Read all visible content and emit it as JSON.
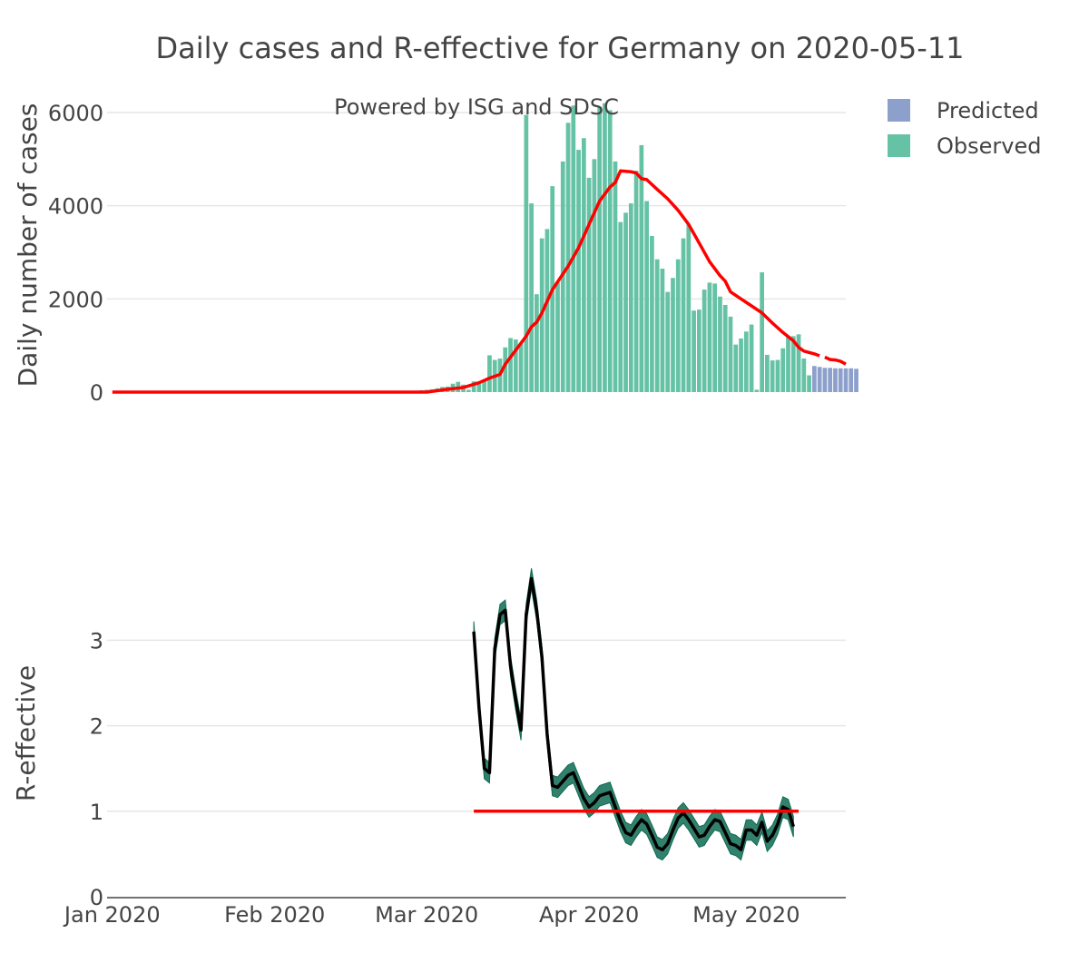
{
  "chart_data": [
    {
      "id": "cases",
      "type": "bar",
      "title": "Daily cases and R-effective for Germany on 2020-05-11",
      "annotation": "Powered by ISG and SDSC",
      "ylabel": "Daily number of cases",
      "xlim": [
        "2019-12-31",
        "2020-05-20"
      ],
      "ylim": [
        0,
        6000
      ],
      "yticks": [
        0,
        2000,
        4000,
        6000
      ],
      "legend": {
        "position": "top-right",
        "items": [
          {
            "name": "Predicted",
            "color": "#8da0cb"
          },
          {
            "name": "Observed",
            "color": "#66c2a5"
          }
        ]
      },
      "series": [
        {
          "name": "Observed",
          "type": "bar",
          "color": "#66c2a5",
          "start": "2020-02-25",
          "values": [
            10,
            5,
            15,
            20,
            40,
            50,
            60,
            80,
            110,
            120,
            180,
            220,
            160,
            50,
            230,
            180,
            250,
            790,
            690,
            720,
            960,
            1160,
            1130,
            1040,
            5950,
            4050,
            2100,
            3300,
            3500,
            4420,
            2350,
            4950,
            5780,
            6150,
            5200,
            5450,
            4600,
            5000,
            6100,
            6200,
            6050,
            4950,
            3650,
            3850,
            4050,
            4750,
            5300,
            4100,
            3350,
            2850,
            2650,
            2150,
            2450,
            2850,
            3300,
            3600,
            1750,
            1770,
            2200,
            2350,
            2330,
            2050,
            1870,
            1620,
            1020,
            1150,
            1300,
            1450,
            50,
            2570,
            800,
            680,
            690,
            940,
            1180,
            1200,
            1240,
            720,
            360
          ]
        },
        {
          "name": "Predicted",
          "type": "bar",
          "color": "#8da0cb",
          "start": "2020-05-14",
          "values": [
            560,
            540,
            520,
            520,
            510,
            510,
            510,
            510,
            500
          ]
        },
        {
          "name": "Smoothed",
          "type": "line",
          "color": "#ff0000",
          "points": [
            [
              "2020-01-01",
              0
            ],
            [
              "2020-03-01",
              0
            ],
            [
              "2020-03-05",
              60
            ],
            [
              "2020-03-08",
              100
            ],
            [
              "2020-03-11",
              200
            ],
            [
              "2020-03-13",
              300
            ],
            [
              "2020-03-15",
              380
            ],
            [
              "2020-03-16",
              600
            ],
            [
              "2020-03-18",
              900
            ],
            [
              "2020-03-20",
              1200
            ],
            [
              "2020-03-21",
              1400
            ],
            [
              "2020-03-22",
              1500
            ],
            [
              "2020-03-23",
              1700
            ],
            [
              "2020-03-25",
              2200
            ],
            [
              "2020-03-28",
              2700
            ],
            [
              "2020-03-30",
              3100
            ],
            [
              "2020-04-01",
              3600
            ],
            [
              "2020-04-03",
              4100
            ],
            [
              "2020-04-05",
              4400
            ],
            [
              "2020-04-06",
              4500
            ],
            [
              "2020-04-07",
              4750
            ],
            [
              "2020-04-09",
              4730
            ],
            [
              "2020-04-10",
              4700
            ],
            [
              "2020-04-11",
              4580
            ],
            [
              "2020-04-12",
              4560
            ],
            [
              "2020-04-14",
              4350
            ],
            [
              "2020-04-16",
              4150
            ],
            [
              "2020-04-18",
              3900
            ],
            [
              "2020-04-20",
              3600
            ],
            [
              "2020-04-22",
              3200
            ],
            [
              "2020-04-24",
              2800
            ],
            [
              "2020-04-26",
              2500
            ],
            [
              "2020-04-27",
              2380
            ],
            [
              "2020-04-28",
              2150
            ],
            [
              "2020-04-30",
              2000
            ],
            [
              "2020-05-02",
              1850
            ],
            [
              "2020-05-04",
              1700
            ],
            [
              "2020-05-06",
              1480
            ],
            [
              "2020-05-08",
              1280
            ],
            [
              "2020-05-10",
              1100
            ],
            [
              "2020-05-11",
              960
            ],
            [
              "2020-05-12",
              880
            ],
            [
              "2020-05-14",
              820
            ],
            [
              "2020-05-15",
              780
            ]
          ]
        },
        {
          "name": "Smoothed (predicted)",
          "type": "line",
          "color": "#ff0000",
          "points": [
            [
              "2020-05-16",
              750
            ],
            [
              "2020-05-17",
              700
            ],
            [
              "2020-05-18",
              690
            ],
            [
              "2020-05-19",
              660
            ],
            [
              "2020-05-20",
              600
            ]
          ]
        }
      ]
    },
    {
      "id": "reff",
      "type": "line",
      "ylabel": "R-effective",
      "xlim": [
        "2019-12-31",
        "2020-05-20"
      ],
      "ylim": [
        0,
        3.8
      ],
      "yticks": [
        0,
        1,
        2,
        3
      ],
      "xticks": [
        {
          "date": "2020-01-01",
          "label": "Jan 2020"
        },
        {
          "date": "2020-02-01",
          "label": "Feb 2020"
        },
        {
          "date": "2020-03-01",
          "label": "Mar 2020"
        },
        {
          "date": "2020-04-01",
          "label": "Apr 2020"
        },
        {
          "date": "2020-05-01",
          "label": "May 2020"
        }
      ],
      "series": [
        {
          "name": "R-effective",
          "type": "line",
          "color": "#000000",
          "band_color": "#0e6b53",
          "start": "2020-03-10",
          "band": 0.12,
          "values": [
            3.1,
            2.2,
            1.5,
            1.45,
            2.9,
            3.3,
            3.35,
            2.7,
            2.3,
            1.95,
            3.3,
            3.72,
            3.35,
            2.8,
            1.9,
            1.3,
            1.28,
            1.35,
            1.42,
            1.45,
            1.3,
            1.15,
            1.05,
            1.1,
            1.18,
            1.2,
            1.22,
            1.05,
            0.88,
            0.75,
            0.72,
            0.82,
            0.9,
            0.85,
            0.72,
            0.58,
            0.55,
            0.62,
            0.78,
            0.92,
            0.98,
            0.9,
            0.8,
            0.7,
            0.72,
            0.82,
            0.9,
            0.88,
            0.75,
            0.62,
            0.6,
            0.55,
            0.78,
            0.78,
            0.72,
            0.87,
            0.65,
            0.72,
            0.85,
            1.05,
            1.02,
            0.82
          ]
        },
        {
          "name": "Threshold",
          "type": "line",
          "color": "#ff0000",
          "points": [
            [
              "2020-03-10",
              1
            ],
            [
              "2020-05-11",
              1
            ]
          ]
        }
      ]
    }
  ]
}
